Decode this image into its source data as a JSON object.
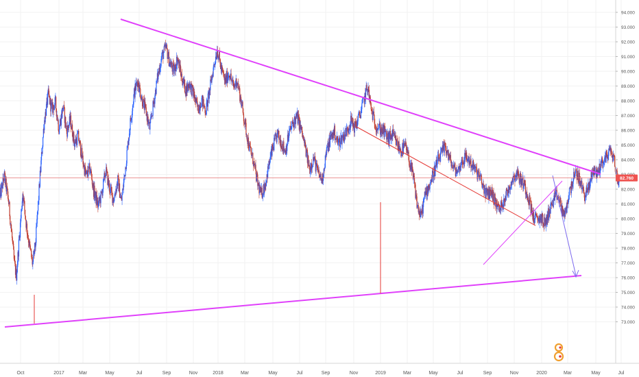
{
  "colors": {
    "background": "#ffffff",
    "up_candle": "#2962ff",
    "down_candle": "#c0392b",
    "trend_major": "#e040fb",
    "trend_minor": "#e53935",
    "projection_arrow": "#7b68ee",
    "price_line": "#e57373",
    "price_badge": "#ef5350"
  },
  "chart_data": {
    "type": "candlestick",
    "title": "",
    "xlabel": "",
    "ylabel": "",
    "ylim": [
      72.2,
      94.5
    ],
    "y_ticks": [
      "73.000",
      "74.000",
      "75.000",
      "76.000",
      "77.000",
      "78.000",
      "79.000",
      "80.000",
      "81.000",
      "82.000",
      "83.000",
      "84.000",
      "85.000",
      "86.000",
      "87.000",
      "88.000",
      "89.000",
      "90.000",
      "91.000",
      "92.000",
      "93.000",
      "94.000"
    ],
    "x_ticks": [
      "Oct",
      "2017",
      "Mar",
      "May",
      "Jul",
      "Sep",
      "Nov",
      "2018",
      "Mar",
      "May",
      "Jul",
      "Sep",
      "Nov",
      "2019",
      "Mar",
      "May",
      "Jul",
      "Sep",
      "Nov",
      "2020",
      "Mar",
      "May",
      "Jul"
    ],
    "current_price": "82.760",
    "grid": true,
    "price_path": [
      [
        0.0,
        81.5
      ],
      [
        0.6,
        82.9
      ],
      [
        1.2,
        81.2
      ],
      [
        1.6,
        79.2
      ],
      [
        2.0,
        77.0
      ],
      [
        2.3,
        76.1
      ],
      [
        2.7,
        78.6
      ],
      [
        3.2,
        81.8
      ],
      [
        3.7,
        79.6
      ],
      [
        4.2,
        78.0
      ],
      [
        4.6,
        76.9
      ],
      [
        5.0,
        78.3
      ],
      [
        5.6,
        82.6
      ],
      [
        6.2,
        86.5
      ],
      [
        6.8,
        88.4
      ],
      [
        7.3,
        87.4
      ],
      [
        7.8,
        87.9
      ],
      [
        8.3,
        86.1
      ],
      [
        8.9,
        87.6
      ],
      [
        9.4,
        85.9
      ],
      [
        9.9,
        86.7
      ],
      [
        10.5,
        85.1
      ],
      [
        11.0,
        85.6
      ],
      [
        11.6,
        84.1
      ],
      [
        12.1,
        82.9
      ],
      [
        12.7,
        83.4
      ],
      [
        13.2,
        81.9
      ],
      [
        13.8,
        80.9
      ],
      [
        14.3,
        81.6
      ],
      [
        14.9,
        83.3
      ],
      [
        15.4,
        82.1
      ],
      [
        16.0,
        81.3
      ],
      [
        16.6,
        82.6
      ],
      [
        17.1,
        81.1
      ],
      [
        17.7,
        83.6
      ],
      [
        18.3,
        86.3
      ],
      [
        18.9,
        88.5
      ],
      [
        19.4,
        89.4
      ],
      [
        20.0,
        88.1
      ],
      [
        20.6,
        87.2
      ],
      [
        21.1,
        86.1
      ],
      [
        21.7,
        88.0
      ],
      [
        22.2,
        89.6
      ],
      [
        22.8,
        91.0
      ],
      [
        23.4,
        91.6
      ],
      [
        23.9,
        90.6
      ],
      [
        24.5,
        90.0
      ],
      [
        25.0,
        90.9
      ],
      [
        25.6,
        89.6
      ],
      [
        26.2,
        88.7
      ],
      [
        26.7,
        89.2
      ],
      [
        27.3,
        88.4
      ],
      [
        27.9,
        87.4
      ],
      [
        28.4,
        88.1
      ],
      [
        29.0,
        87.3
      ],
      [
        29.5,
        88.6
      ],
      [
        30.1,
        90.3
      ],
      [
        30.6,
        91.5
      ],
      [
        31.2,
        90.1
      ],
      [
        31.7,
        89.3
      ],
      [
        32.3,
        89.9
      ],
      [
        32.9,
        88.9
      ],
      [
        33.4,
        89.4
      ],
      [
        34.0,
        87.9
      ],
      [
        34.6,
        86.2
      ],
      [
        35.1,
        84.9
      ],
      [
        35.7,
        83.9
      ],
      [
        36.3,
        82.4
      ],
      [
        36.8,
        81.6
      ],
      [
        37.4,
        82.4
      ],
      [
        38.0,
        83.9
      ],
      [
        38.5,
        84.9
      ],
      [
        39.1,
        85.7
      ],
      [
        39.7,
        85.1
      ],
      [
        40.2,
        84.6
      ],
      [
        40.8,
        85.9
      ],
      [
        41.4,
        86.6
      ],
      [
        41.9,
        86.9
      ],
      [
        42.5,
        85.9
      ],
      [
        43.1,
        84.6
      ],
      [
        43.6,
        83.4
      ],
      [
        44.2,
        84.1
      ],
      [
        44.8,
        83.1
      ],
      [
        45.4,
        82.6
      ],
      [
        45.9,
        84.3
      ],
      [
        46.5,
        85.4
      ],
      [
        47.1,
        85.9
      ],
      [
        47.6,
        85.1
      ],
      [
        48.2,
        85.5
      ],
      [
        48.8,
        85.9
      ],
      [
        49.4,
        86.6
      ],
      [
        50.0,
        86.2
      ],
      [
        50.6,
        86.9
      ],
      [
        51.2,
        87.9
      ],
      [
        51.8,
        89.0
      ],
      [
        52.3,
        87.4
      ],
      [
        52.9,
        86.4
      ],
      [
        53.5,
        86.1
      ],
      [
        54.1,
        85.9
      ],
      [
        54.7,
        85.4
      ],
      [
        55.3,
        85.7
      ],
      [
        55.9,
        85.1
      ],
      [
        56.5,
        84.6
      ],
      [
        57.1,
        84.9
      ],
      [
        57.7,
        83.9
      ],
      [
        58.3,
        82.6
      ],
      [
        58.8,
        80.9
      ],
      [
        59.3,
        80.1
      ],
      [
        59.9,
        81.6
      ],
      [
        60.5,
        82.3
      ],
      [
        61.1,
        83.1
      ],
      [
        61.7,
        83.9
      ],
      [
        62.2,
        84.4
      ],
      [
        62.8,
        84.9
      ],
      [
        63.3,
        84.1
      ],
      [
        63.9,
        83.4
      ],
      [
        64.5,
        83.2
      ],
      [
        65.0,
        83.8
      ],
      [
        65.6,
        84.2
      ],
      [
        66.2,
        83.9
      ],
      [
        66.8,
        83.4
      ],
      [
        67.4,
        83.0
      ],
      [
        68.0,
        82.3
      ],
      [
        68.6,
        81.6
      ],
      [
        69.2,
        81.9
      ],
      [
        69.8,
        81.1
      ],
      [
        70.4,
        80.6
      ],
      [
        71.0,
        81.3
      ],
      [
        71.6,
        81.9
      ],
      [
        72.2,
        82.7
      ],
      [
        72.8,
        83.1
      ],
      [
        73.3,
        82.7
      ],
      [
        73.9,
        82.3
      ],
      [
        74.5,
        81.4
      ],
      [
        75.1,
        80.2
      ],
      [
        75.6,
        79.9
      ],
      [
        76.2,
        80.1
      ],
      [
        76.8,
        79.6
      ],
      [
        77.3,
        80.4
      ],
      [
        77.9,
        81.1
      ],
      [
        78.5,
        81.6
      ],
      [
        79.1,
        80.8
      ],
      [
        79.6,
        80.1
      ],
      [
        80.1,
        81.5
      ],
      [
        80.7,
        82.6
      ],
      [
        81.3,
        83.1
      ],
      [
        81.8,
        82.4
      ],
      [
        82.4,
        81.6
      ],
      [
        83.0,
        82.1
      ],
      [
        83.6,
        83.4
      ],
      [
        84.1,
        83.0
      ],
      [
        84.7,
        83.7
      ],
      [
        85.3,
        84.1
      ],
      [
        85.9,
        84.6
      ],
      [
        86.4,
        84.3
      ],
      [
        86.9,
        82.9
      ],
      [
        87.3,
        82.4
      ]
    ]
  }
}
